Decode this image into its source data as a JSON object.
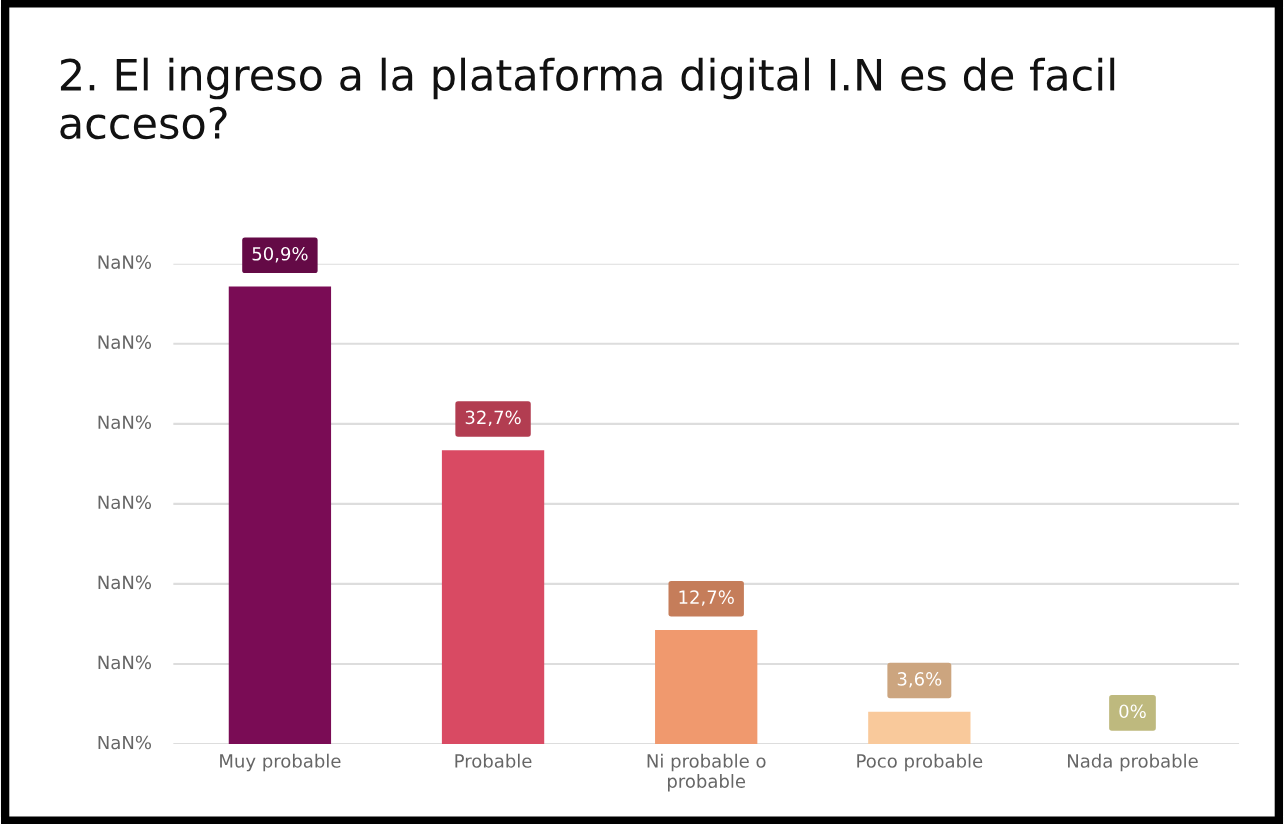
{
  "chart_data": {
    "type": "bar",
    "title": "2. El ingreso a la plataforma digital I.N es de facil\nacceso?",
    "categories": [
      "Muy probable",
      "Probable",
      "Ni probable o\nprobable",
      "Poco probable",
      "Nada probable"
    ],
    "values": [
      50.9,
      32.7,
      12.7,
      3.6,
      0
    ],
    "value_labels": [
      "50,9%",
      "32,7%",
      "12,7%",
      "3,6%",
      "0%"
    ],
    "colors": [
      "#7a0c55",
      "#d94a63",
      "#f0996e",
      "#f9c99b",
      "#e8e29a"
    ],
    "annotations": [
      "NaN%",
      "NaN%",
      "NaN%",
      "NaN%",
      "NaN%",
      "NaN%",
      "NaN%"
    ],
    "grid": "y"
  }
}
